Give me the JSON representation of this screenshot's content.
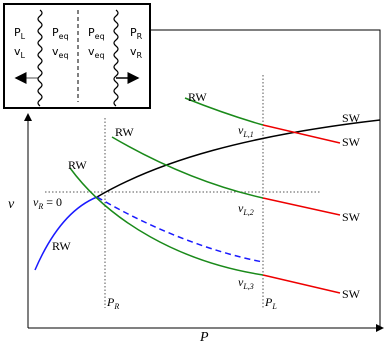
{
  "inset": {
    "left_region": [
      {
        "symbol": "P",
        "subscript": "L"
      },
      {
        "symbol": "v",
        "subscript": "L"
      }
    ],
    "middle_left": [
      {
        "symbol": "P",
        "subscript": "eq"
      },
      {
        "symbol": "v",
        "subscript": "eq"
      }
    ],
    "middle_right": [
      {
        "symbol": "P",
        "subscript": "eq"
      },
      {
        "symbol": "v",
        "subscript": "eq"
      }
    ],
    "right_region": [
      {
        "symbol": "P",
        "subscript": "R"
      },
      {
        "symbol": "v",
        "subscript": "R"
      }
    ]
  },
  "axes": {
    "x_label": "P",
    "y_label": "v"
  },
  "markers": {
    "pressure": [
      {
        "symbol": "P",
        "subscript": "R"
      },
      {
        "symbol": "P",
        "subscript": "L"
      }
    ],
    "initial_state": {
      "symbol": "v",
      "subscript": "R",
      "relation": "= 0"
    }
  },
  "curve_labels": {
    "rw": [
      "RW",
      "RW",
      "RW",
      "RW"
    ],
    "sw": [
      "SW",
      "SW",
      "SW",
      "SW"
    ]
  },
  "states": [
    {
      "symbol": "v",
      "subscript": "L,1"
    },
    {
      "symbol": "v",
      "subscript": "L,2"
    },
    {
      "symbol": "v",
      "subscript": "L,3"
    }
  ]
}
